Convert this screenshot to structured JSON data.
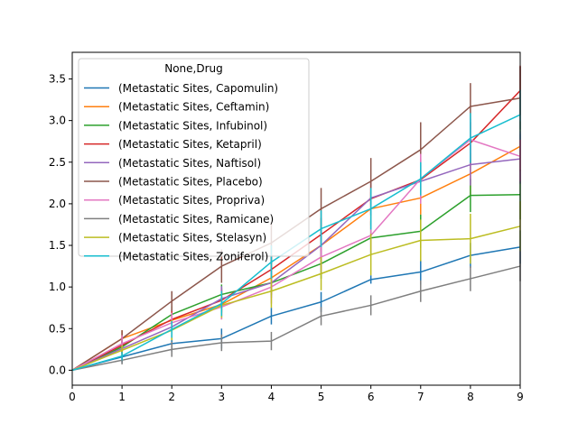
{
  "chart_data": {
    "type": "line",
    "title": "",
    "xlabel": "",
    "ylabel": "",
    "xlim": [
      0,
      9
    ],
    "ylim": [
      -0.18,
      3.82
    ],
    "x": [
      0,
      1,
      2,
      3,
      4,
      5,
      6,
      7,
      8,
      9
    ],
    "xticks": [
      0,
      1,
      2,
      3,
      4,
      5,
      6,
      7,
      8,
      9
    ],
    "xtick_labels": [
      "0",
      "1",
      "2",
      "3",
      "4",
      "5",
      "6",
      "7",
      "8",
      "9"
    ],
    "yticks": [
      0.0,
      0.5,
      1.0,
      1.5,
      2.0,
      2.5,
      3.0,
      3.5
    ],
    "ytick_labels": [
      "0.0",
      "0.5",
      "1.0",
      "1.5",
      "2.0",
      "2.5",
      "3.0",
      "3.5"
    ],
    "grid": false,
    "legend": {
      "title": "None,Drug",
      "position": "upper-left"
    },
    "series": [
      {
        "name": "(Metastatic Sites, Capomulin)",
        "color": "#1f77b4",
        "values": [
          0.0,
          0.16,
          0.32,
          0.38,
          0.65,
          0.82,
          1.09,
          1.18,
          1.38,
          1.48
        ],
        "errors": [
          0.0,
          0.07,
          0.1,
          0.12,
          0.1,
          0.12,
          0.05,
          0.15,
          0.15,
          0.2
        ]
      },
      {
        "name": "(Metastatic Sites, Ceftamin)",
        "color": "#ff7f0e",
        "values": [
          0.0,
          0.38,
          0.6,
          0.79,
          1.11,
          1.5,
          1.94,
          2.07,
          2.36,
          2.69
        ],
        "errors": [
          0.0,
          0.1,
          0.12,
          0.18,
          0.2,
          0.2,
          0.2,
          0.2,
          0.25,
          0.3
        ]
      },
      {
        "name": "(Metastatic Sites, Infubinol)",
        "color": "#2ca02c",
        "values": [
          0.0,
          0.28,
          0.67,
          0.91,
          1.05,
          1.28,
          1.59,
          1.67,
          2.1,
          2.11
        ],
        "errors": [
          0.0,
          0.07,
          0.1,
          0.12,
          0.15,
          0.18,
          0.2,
          0.2,
          0.2,
          0.3
        ]
      },
      {
        "name": "(Metastatic Sites, Ketapril)",
        "color": "#d62728",
        "values": [
          0.0,
          0.3,
          0.61,
          0.84,
          1.21,
          1.63,
          2.06,
          2.29,
          2.73,
          3.36
        ],
        "errors": [
          0.0,
          0.1,
          0.12,
          0.15,
          0.18,
          0.2,
          0.2,
          0.25,
          0.25,
          0.3
        ]
      },
      {
        "name": "(Metastatic Sites, Naftisol)",
        "color": "#9467bd",
        "values": [
          0.0,
          0.26,
          0.52,
          0.86,
          1.05,
          1.5,
          2.07,
          2.27,
          2.47,
          2.54
        ],
        "errors": [
          0.0,
          0.08,
          0.12,
          0.15,
          0.18,
          0.2,
          0.2,
          0.2,
          0.25,
          0.3
        ]
      },
      {
        "name": "(Metastatic Sites, Placebo)",
        "color": "#8c564b",
        "values": [
          0.0,
          0.38,
          0.83,
          1.25,
          1.53,
          1.94,
          2.27,
          2.65,
          3.17,
          3.27
        ],
        "errors": [
          0.0,
          0.1,
          0.12,
          0.2,
          0.25,
          0.25,
          0.28,
          0.33,
          0.28,
          0.38
        ]
      },
      {
        "name": "(Metastatic Sites, Propriva)",
        "color": "#e377c2",
        "values": [
          0.0,
          0.32,
          0.57,
          0.76,
          1.0,
          1.36,
          1.62,
          2.3,
          2.77,
          2.57
        ],
        "errors": [
          0.0,
          0.1,
          0.12,
          0.15,
          0.2,
          0.2,
          0.2,
          0.3,
          0.25,
          0.3
        ]
      },
      {
        "name": "(Metastatic Sites, Ramicane)",
        "color": "#7f7f7f",
        "values": [
          0.0,
          0.12,
          0.25,
          0.33,
          0.35,
          0.65,
          0.78,
          0.95,
          1.1,
          1.25
        ],
        "errors": [
          0.0,
          0.05,
          0.09,
          0.1,
          0.11,
          0.11,
          0.12,
          0.13,
          0.15,
          0.18
        ]
      },
      {
        "name": "(Metastatic Sites, Stelasyn)",
        "color": "#bcbd22",
        "values": [
          0.0,
          0.24,
          0.48,
          0.78,
          0.95,
          1.16,
          1.39,
          1.56,
          1.58,
          1.73
        ],
        "errors": [
          0.0,
          0.06,
          0.12,
          0.15,
          0.2,
          0.2,
          0.25,
          0.25,
          0.3,
          0.3
        ]
      },
      {
        "name": "(Metastatic Sites, Zoniferol)",
        "color": "#17becf",
        "values": [
          0.0,
          0.17,
          0.49,
          0.8,
          1.3,
          1.7,
          1.94,
          2.3,
          2.79,
          3.07
        ],
        "errors": [
          0.0,
          0.05,
          0.1,
          0.15,
          0.2,
          0.22,
          0.25,
          0.2,
          0.3,
          0.3
        ]
      }
    ]
  }
}
